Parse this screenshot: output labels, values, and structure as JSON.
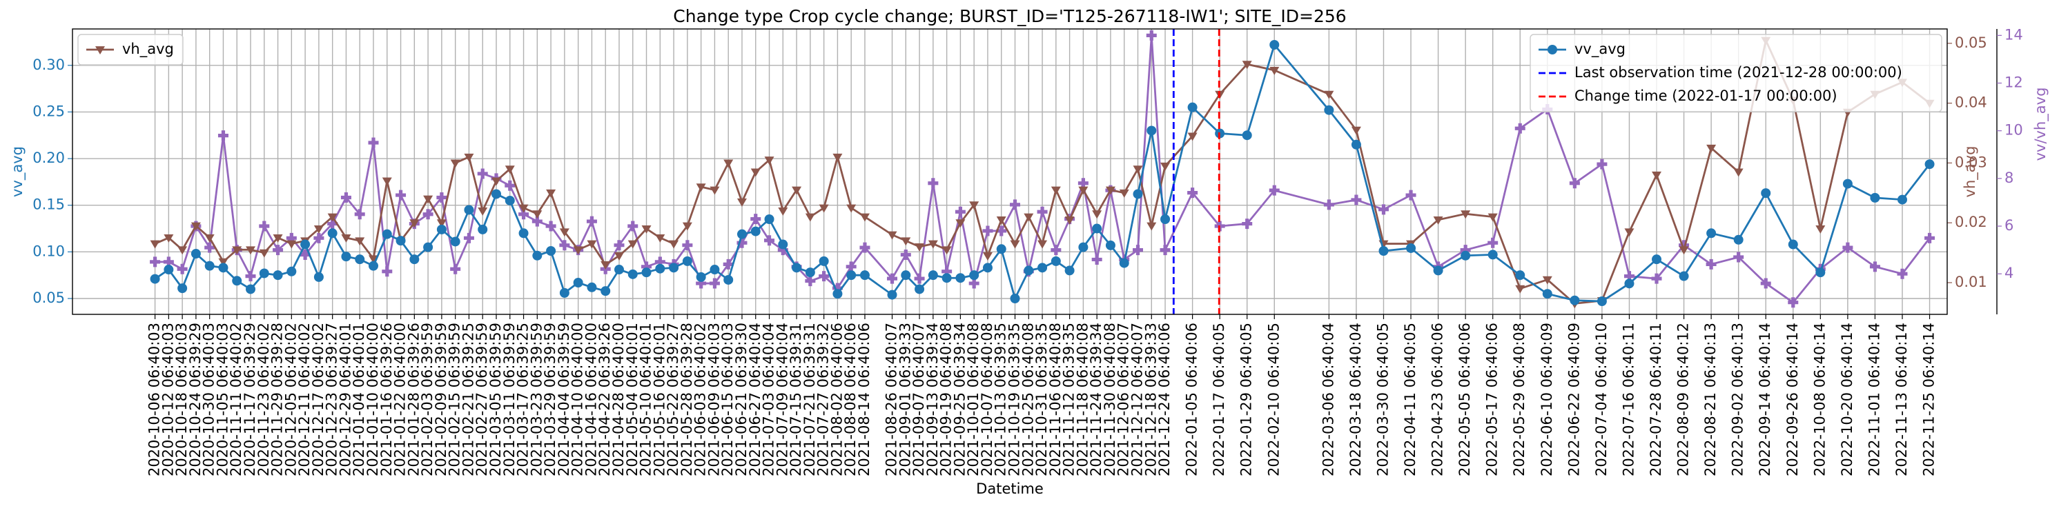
{
  "chart_data": {
    "type": "line",
    "title": "Change type Crop cycle change; BURST_ID='T125-267118-IW1'; SITE_ID=256",
    "xlabel": "Datetime",
    "ylabel": "vv_avg",
    "y2label": "vh_avg",
    "y3label": "vv/vh_avg",
    "x": [
      "2020-10-06 06:40:03",
      "2020-10-12 06:40:03",
      "2020-10-18 06:40:03",
      "2020-10-24 06:39:29",
      "2020-10-30 06:40:03",
      "2020-11-05 06:40:03",
      "2020-11-11 06:40:02",
      "2020-11-17 06:39:29",
      "2020-11-23 06:40:02",
      "2020-11-29 06:39:28",
      "2020-12-05 06:40:02",
      "2020-12-11 06:40:02",
      "2020-12-17 06:40:02",
      "2020-12-23 06:39:27",
      "2020-12-29 06:40:01",
      "2021-01-04 06:40:01",
      "2021-01-10 06:40:00",
      "2021-01-16 06:39:26",
      "2021-01-22 06:40:00",
      "2021-01-28 06:39:26",
      "2021-02-03 06:39:59",
      "2021-02-09 06:39:59",
      "2021-02-15 06:39:59",
      "2021-02-21 06:39:25",
      "2021-02-27 06:39:59",
      "2021-03-05 06:39:59",
      "2021-03-11 06:39:59",
      "2021-03-17 06:39:25",
      "2021-03-23 06:39:59",
      "2021-03-29 06:39:59",
      "2021-04-04 06:39:59",
      "2021-04-10 06:40:00",
      "2021-04-16 06:40:00",
      "2021-04-22 06:39:26",
      "2021-04-28 06:40:00",
      "2021-05-04 06:40:01",
      "2021-05-10 06:40:01",
      "2021-05-16 06:40:01",
      "2021-05-22 06:39:27",
      "2021-05-28 06:39:28",
      "2021-06-03 06:40:02",
      "2021-06-09 06:40:03",
      "2021-06-15 06:40:03",
      "2021-06-21 06:39:30",
      "2021-06-27 06:40:04",
      "2021-07-03 06:40:04",
      "2021-07-09 06:40:04",
      "2021-07-15 06:39:31",
      "2021-07-21 06:39:31",
      "2021-07-27 06:39:32",
      "2021-08-02 06:40:06",
      "2021-08-08 06:40:06",
      "2021-08-14 06:40:06",
      "2021-08-26 06:40:07",
      "2021-09-01 06:39:33",
      "2021-09-07 06:40:07",
      "2021-09-13 06:39:34",
      "2021-09-19 06:40:08",
      "2021-09-25 06:39:34",
      "2021-10-01 06:40:08",
      "2021-10-07 06:40:08",
      "2021-10-13 06:39:35",
      "2021-10-19 06:39:35",
      "2021-10-25 06:40:08",
      "2021-10-31 06:39:35",
      "2021-11-06 06:40:08",
      "2021-11-12 06:39:35",
      "2021-11-18 06:40:08",
      "2021-11-24 06:39:34",
      "2021-11-30 06:40:08",
      "2021-12-06 06:40:07",
      "2021-12-12 06:40:07",
      "2021-12-18 06:39:33",
      "2021-12-24 06:40:06",
      "2022-01-05 06:40:06",
      "2022-01-17 06:40:05",
      "2022-01-29 06:40:05",
      "2022-02-10 06:40:05",
      "2022-03-06 06:40:04",
      "2022-03-18 06:40:04",
      "2022-03-30 06:40:05",
      "2022-04-11 06:40:05",
      "2022-04-23 06:40:06",
      "2022-05-05 06:40:06",
      "2022-05-17 06:40:06",
      "2022-05-29 06:40:08",
      "2022-06-10 06:40:09",
      "2022-06-22 06:40:09",
      "2022-07-04 06:40:10",
      "2022-07-16 06:40:11",
      "2022-07-28 06:40:11",
      "2022-08-09 06:40:12",
      "2022-08-21 06:40:13",
      "2022-09-02 06:40:13",
      "2022-09-14 06:40:14",
      "2022-09-26 06:40:14",
      "2022-10-08 06:40:14",
      "2022-10-20 06:40:14",
      "2022-11-01 06:40:14",
      "2022-11-13 06:40:14",
      "2022-11-25 06:40:14"
    ],
    "xlim": [
      "2020-08-31 00:00:00",
      "2022-12-03 00:00:00"
    ],
    "ylim": [
      0.033,
      0.339
    ],
    "yticks": [
      {
        "value": 0.05,
        "label": "0.05"
      },
      {
        "value": 0.1,
        "label": "0.10"
      },
      {
        "value": 0.15,
        "label": "0.15"
      },
      {
        "value": 0.2,
        "label": "0.20"
      },
      {
        "value": 0.25,
        "label": "0.25"
      },
      {
        "value": 0.3,
        "label": "0.30"
      }
    ],
    "y2lim": [
      0.0047,
      0.0524
    ],
    "y2ticks": [
      0.01,
      0.02,
      0.03,
      0.04,
      0.05
    ],
    "y3lim": [
      2.3,
      14.27
    ],
    "y3ticks": [
      4,
      6,
      8,
      10,
      12,
      14
    ],
    "grid": true,
    "series": [
      {
        "name": "vv_avg",
        "color": "#1f77b4",
        "axis": "y",
        "marker": "circle",
        "legend": "upper right",
        "values": [
          0.071,
          0.081,
          0.061,
          0.098,
          0.085,
          0.083,
          0.069,
          0.06,
          0.077,
          0.075,
          0.079,
          0.108,
          0.073,
          0.12,
          0.095,
          0.092,
          0.085,
          0.119,
          0.112,
          0.092,
          0.105,
          0.124,
          0.111,
          0.145,
          0.124,
          0.162,
          0.155,
          0.12,
          0.096,
          0.101,
          0.056,
          0.067,
          0.062,
          0.058,
          0.081,
          0.076,
          0.078,
          0.082,
          0.083,
          0.09,
          0.073,
          0.081,
          0.07,
          0.119,
          0.122,
          0.135,
          0.108,
          0.083,
          0.078,
          0.09,
          0.055,
          0.075,
          0.075,
          0.054,
          0.075,
          0.06,
          0.075,
          0.072,
          0.072,
          0.075,
          0.083,
          0.103,
          0.05,
          0.08,
          0.083,
          0.09,
          0.08,
          0.105,
          0.125,
          0.107,
          0.088,
          0.162,
          0.23,
          0.135,
          0.255,
          0.227,
          0.225,
          0.322,
          0.252,
          0.215,
          0.101,
          0.104,
          0.08,
          0.096,
          0.097,
          0.075,
          0.055,
          0.048,
          0.047,
          0.066,
          0.092,
          0.074,
          0.12,
          0.113,
          0.163,
          0.108,
          0.078,
          0.173,
          0.158,
          0.156,
          0.194
        ]
      },
      {
        "name": "vh_avg",
        "color": "#8c564b",
        "axis": "y2",
        "marker": "triangle-down",
        "legend": "upper left",
        "values": [
          0.0165,
          0.0175,
          0.0155,
          0.0195,
          0.0175,
          0.0135,
          0.0155,
          0.0155,
          0.015,
          0.0175,
          0.0165,
          0.017,
          0.019,
          0.021,
          0.0175,
          0.017,
          0.014,
          0.027,
          0.017,
          0.02,
          0.024,
          0.02,
          0.03,
          0.031,
          0.022,
          0.027,
          0.029,
          0.0225,
          0.0215,
          0.025,
          0.0185,
          0.0155,
          0.0165,
          0.013,
          0.0145,
          0.0165,
          0.019,
          0.0175,
          0.0165,
          0.0195,
          0.026,
          0.0255,
          0.03,
          0.0235,
          0.0285,
          0.0305,
          0.022,
          0.0255,
          0.021,
          0.0225,
          0.031,
          0.0225,
          0.021,
          0.018,
          0.017,
          0.016,
          0.0165,
          0.0155,
          0.02,
          0.023,
          0.0145,
          0.0205,
          0.0165,
          0.021,
          0.0165,
          0.0255,
          0.0205,
          0.0255,
          0.0215,
          0.0255,
          0.025,
          0.029,
          0.0195,
          0.0295,
          0.0345,
          0.0415,
          0.0465,
          0.0455,
          0.0415,
          0.0355,
          0.0165,
          0.0165,
          0.0205,
          0.0215,
          0.021,
          0.009,
          0.0105,
          0.0065,
          0.007,
          0.0185,
          0.028,
          0.0155,
          0.0325,
          0.0285,
          0.0505,
          0.0405,
          0.019,
          0.0385,
          0.0415,
          0.0435,
          0.04
        ]
      },
      {
        "color": "#9467bd",
        "axis": "y3",
        "marker": "plus",
        "values": [
          4.5,
          4.5,
          4.2,
          6.0,
          5.1,
          9.8,
          5.0,
          3.9,
          6.0,
          5.0,
          5.5,
          4.8,
          5.5,
          6.1,
          7.2,
          6.5,
          9.5,
          4.1,
          7.3,
          6.1,
          6.5,
          7.2,
          4.2,
          5.5,
          8.2,
          8.0,
          7.7,
          6.5,
          6.2,
          6.0,
          5.2,
          5.0,
          6.2,
          4.2,
          5.2,
          6.0,
          4.3,
          4.5,
          4.4,
          5.2,
          3.6,
          3.6,
          4.4,
          5.3,
          6.3,
          5.4,
          5.0,
          4.3,
          3.7,
          3.9,
          3.4,
          4.3,
          5.1,
          3.8,
          4.8,
          3.8,
          7.8,
          4.1,
          6.6,
          3.6,
          5.8,
          5.8,
          6.9,
          4.1,
          6.6,
          5.0,
          6.3,
          7.8,
          4.6,
          7.5,
          4.6,
          5.0,
          14.0,
          5.0,
          7.4,
          6.0,
          6.1,
          7.5,
          6.9,
          7.1,
          6.7,
          7.3,
          4.3,
          5.0,
          5.3,
          10.1,
          10.9,
          7.8,
          8.6,
          3.9,
          3.8,
          5.2,
          4.4,
          4.7,
          3.6,
          2.8,
          4.2,
          5.1,
          4.3,
          4.0,
          5.5
        ]
      }
    ],
    "vlines": [
      {
        "x": "2021-12-28 00:00:00",
        "label": "Last observation time (2021-12-28 00:00:00)",
        "color": "#0000ff",
        "legend": "upper right"
      },
      {
        "x": "2022-01-17 00:00:00",
        "label": "Change time (2022-01-17 00:00:00)",
        "color": "#ff0000",
        "legend": "upper right"
      }
    ]
  }
}
